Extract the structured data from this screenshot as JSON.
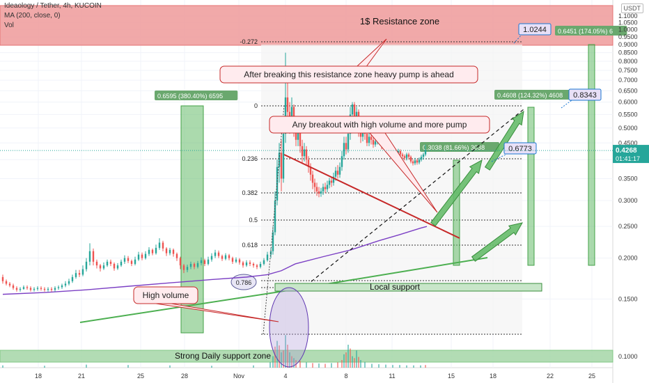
{
  "header": {
    "symbol": "Ideaology / Tether, 4h, KUCOIN",
    "ma_label": "MA (200, close, 0)",
    "vol_label": "Vol"
  },
  "price_axis": {
    "unit": "USDT",
    "ticks": [
      "1.1000",
      "1.0500",
      "1.0000",
      "0.9500",
      "0.9000",
      "0.8500",
      "0.8000",
      "0.7500",
      "0.7000",
      "0.6500",
      "0.6000",
      "0.5500",
      "0.5000",
      "0.4500",
      "0.4000",
      "0.3500",
      "0.3000",
      "0.2500",
      "0.2000",
      "0.1500",
      "0.1000"
    ],
    "current_price": "0.4268",
    "countdown": "01:41:17"
  },
  "time_axis": {
    "ticks": [
      "18",
      "21",
      "25",
      "28",
      "Nov",
      "4",
      "8",
      "11",
      "15",
      "18",
      "22",
      "25"
    ]
  },
  "fib_levels": [
    {
      "label": "-0.272"
    },
    {
      "label": "0"
    },
    {
      "label": "0.236"
    },
    {
      "label": "0.382"
    },
    {
      "label": "0.5"
    },
    {
      "label": "0.618"
    },
    {
      "label": "0.786"
    }
  ],
  "annotations": {
    "resistance_zone": "1$ Resistance zone",
    "breaking_note": "After breaking this resistance zone heavy pump is ahead",
    "breakout_note": "Any breakout with high volume and more pump",
    "high_volume": "High volume",
    "local_support": "Local support",
    "daily_support": "Strong Daily support zone"
  },
  "measurements": {
    "left_range": "0.6595 (380.40%) 6595",
    "target1": "0.3038 (81.66%) 3038",
    "target2": "0.4608 (124.32%) 4608",
    "target3": "0.6451 (174.05%) 6"
  },
  "price_tags": {
    "t1": "0.6773",
    "t2": "0.8343",
    "t3": "1.0244"
  },
  "colors": {
    "up": "#26a69a",
    "down": "#ef5350",
    "ma": "#7b3fc4",
    "trendline": "#4caf50",
    "resistance_line": "#c62828",
    "resistance_zone": "#ef9a9a",
    "support_zone": "#a5d6a7",
    "arrow": "#66bb6a"
  },
  "chart_data": {
    "type": "candlestick",
    "timeframe": "4h",
    "exchange": "KUCOIN",
    "pair": "Ideaology / Tether",
    "y_scale": "log",
    "ylim": [
      0.09,
      1.15
    ],
    "grid": true,
    "series": [
      {
        "name": "MA (200, close, 0)",
        "type": "line",
        "points": [
          [
            0,
            0.155
          ],
          [
            60,
            0.157
          ],
          [
            120,
            0.16
          ],
          [
            180,
            0.164
          ],
          [
            240,
            0.168
          ],
          [
            300,
            0.172
          ],
          [
            350,
            0.175
          ],
          [
            380,
            0.178
          ],
          [
            400,
            0.183
          ],
          [
            420,
            0.192
          ],
          [
            460,
            0.202
          ],
          [
            500,
            0.212
          ],
          [
            540,
            0.226
          ],
          [
            570,
            0.236
          ],
          [
            600,
            0.247
          ],
          [
            609,
            0.25
          ]
        ]
      }
    ],
    "candles": [
      [
        0,
        0.175,
        0.17,
        0.178,
        0.167
      ],
      [
        5,
        0.17,
        0.167,
        0.172,
        0.165
      ],
      [
        10,
        0.167,
        0.165,
        0.169,
        0.163
      ],
      [
        15,
        0.165,
        0.162,
        0.167,
        0.16
      ],
      [
        20,
        0.162,
        0.16,
        0.164,
        0.158
      ],
      [
        25,
        0.16,
        0.161,
        0.163,
        0.158
      ],
      [
        30,
        0.161,
        0.163,
        0.165,
        0.16
      ],
      [
        35,
        0.163,
        0.162,
        0.165,
        0.16
      ],
      [
        40,
        0.162,
        0.16,
        0.164,
        0.158
      ],
      [
        45,
        0.16,
        0.161,
        0.163,
        0.158
      ],
      [
        50,
        0.161,
        0.162,
        0.164,
        0.159
      ],
      [
        55,
        0.162,
        0.161,
        0.164,
        0.159
      ],
      [
        60,
        0.161,
        0.16,
        0.163,
        0.158
      ],
      [
        65,
        0.16,
        0.161,
        0.163,
        0.158
      ],
      [
        70,
        0.161,
        0.16,
        0.163,
        0.158
      ],
      [
        75,
        0.16,
        0.162,
        0.164,
        0.158
      ],
      [
        80,
        0.162,
        0.163,
        0.165,
        0.16
      ],
      [
        85,
        0.163,
        0.165,
        0.167,
        0.161
      ],
      [
        90,
        0.165,
        0.167,
        0.17,
        0.163
      ],
      [
        95,
        0.167,
        0.17,
        0.173,
        0.165
      ],
      [
        100,
        0.17,
        0.175,
        0.178,
        0.168
      ],
      [
        105,
        0.175,
        0.18,
        0.184,
        0.173
      ],
      [
        110,
        0.18,
        0.178,
        0.184,
        0.175
      ],
      [
        115,
        0.178,
        0.185,
        0.19,
        0.176
      ],
      [
        120,
        0.185,
        0.195,
        0.2,
        0.182
      ],
      [
        125,
        0.195,
        0.21,
        0.222,
        0.19
      ],
      [
        130,
        0.21,
        0.195,
        0.214,
        0.19
      ],
      [
        135,
        0.195,
        0.19,
        0.198,
        0.186
      ],
      [
        140,
        0.19,
        0.186,
        0.192,
        0.182
      ],
      [
        145,
        0.186,
        0.19,
        0.194,
        0.184
      ],
      [
        150,
        0.19,
        0.195,
        0.198,
        0.188
      ],
      [
        155,
        0.195,
        0.192,
        0.198,
        0.189
      ],
      [
        160,
        0.192,
        0.186,
        0.194,
        0.183
      ],
      [
        165,
        0.186,
        0.19,
        0.193,
        0.184
      ],
      [
        170,
        0.19,
        0.195,
        0.198,
        0.188
      ],
      [
        175,
        0.195,
        0.2,
        0.204,
        0.192
      ],
      [
        180,
        0.2,
        0.196,
        0.203,
        0.193
      ],
      [
        185,
        0.196,
        0.192,
        0.198,
        0.189
      ],
      [
        190,
        0.192,
        0.198,
        0.202,
        0.19
      ],
      [
        195,
        0.198,
        0.205,
        0.209,
        0.196
      ],
      [
        200,
        0.205,
        0.2,
        0.208,
        0.197
      ],
      [
        205,
        0.2,
        0.206,
        0.21,
        0.198
      ],
      [
        210,
        0.206,
        0.212,
        0.216,
        0.203
      ],
      [
        215,
        0.212,
        0.207,
        0.214,
        0.204
      ],
      [
        220,
        0.207,
        0.215,
        0.22,
        0.205
      ],
      [
        225,
        0.215,
        0.223,
        0.23,
        0.212
      ],
      [
        230,
        0.223,
        0.214,
        0.226,
        0.21
      ],
      [
        235,
        0.214,
        0.207,
        0.216,
        0.203
      ],
      [
        240,
        0.207,
        0.212,
        0.215,
        0.204
      ],
      [
        245,
        0.212,
        0.206,
        0.214,
        0.202
      ],
      [
        250,
        0.206,
        0.2,
        0.208,
        0.196
      ],
      [
        255,
        0.2,
        0.19,
        0.202,
        0.185
      ],
      [
        260,
        0.19,
        0.184,
        0.192,
        0.18
      ],
      [
        265,
        0.184,
        0.188,
        0.191,
        0.181
      ],
      [
        270,
        0.188,
        0.192,
        0.195,
        0.185
      ],
      [
        275,
        0.192,
        0.188,
        0.194,
        0.185
      ],
      [
        280,
        0.188,
        0.193,
        0.196,
        0.186
      ],
      [
        285,
        0.193,
        0.197,
        0.201,
        0.19
      ],
      [
        290,
        0.197,
        0.192,
        0.199,
        0.189
      ],
      [
        295,
        0.192,
        0.198,
        0.202,
        0.19
      ],
      [
        300,
        0.198,
        0.203,
        0.207,
        0.195
      ],
      [
        305,
        0.203,
        0.208,
        0.212,
        0.2
      ],
      [
        310,
        0.208,
        0.203,
        0.211,
        0.2
      ],
      [
        315,
        0.203,
        0.199,
        0.205,
        0.196
      ],
      [
        320,
        0.199,
        0.204,
        0.207,
        0.197
      ],
      [
        325,
        0.204,
        0.2,
        0.206,
        0.197
      ],
      [
        330,
        0.2,
        0.195,
        0.202,
        0.192
      ],
      [
        335,
        0.195,
        0.198,
        0.201,
        0.193
      ],
      [
        340,
        0.198,
        0.194,
        0.2,
        0.191
      ],
      [
        345,
        0.194,
        0.19,
        0.196,
        0.187
      ],
      [
        350,
        0.19,
        0.194,
        0.197,
        0.188
      ],
      [
        355,
        0.194,
        0.192,
        0.197,
        0.189
      ],
      [
        360,
        0.192,
        0.19,
        0.194,
        0.187
      ],
      [
        365,
        0.19,
        0.188,
        0.192,
        0.185
      ],
      [
        370,
        0.188,
        0.192,
        0.195,
        0.186
      ],
      [
        375,
        0.192,
        0.197,
        0.2,
        0.19
      ],
      [
        380,
        0.197,
        0.205,
        0.209,
        0.195
      ],
      [
        385,
        0.205,
        0.21,
        0.215,
        0.2
      ],
      [
        388,
        0.21,
        0.24,
        0.25,
        0.205
      ],
      [
        391,
        0.24,
        0.3,
        0.32,
        0.235
      ],
      [
        394,
        0.3,
        0.38,
        0.4,
        0.29
      ],
      [
        397,
        0.38,
        0.42,
        0.45,
        0.34
      ],
      [
        400,
        0.42,
        0.35,
        0.46,
        0.32
      ],
      [
        403,
        0.35,
        0.48,
        0.52,
        0.34
      ],
      [
        406,
        0.48,
        0.62,
        0.85,
        0.45
      ],
      [
        409,
        0.62,
        0.56,
        0.72,
        0.52
      ],
      [
        412,
        0.56,
        0.52,
        0.6,
        0.48
      ],
      [
        415,
        0.52,
        0.58,
        0.62,
        0.5
      ],
      [
        418,
        0.58,
        0.5,
        0.59,
        0.47
      ],
      [
        421,
        0.5,
        0.46,
        0.52,
        0.44
      ],
      [
        424,
        0.46,
        0.5,
        0.53,
        0.44
      ],
      [
        427,
        0.5,
        0.44,
        0.51,
        0.42
      ],
      [
        430,
        0.44,
        0.41,
        0.46,
        0.39
      ],
      [
        433,
        0.41,
        0.43,
        0.45,
        0.395
      ],
      [
        436,
        0.43,
        0.4,
        0.44,
        0.385
      ],
      [
        439,
        0.4,
        0.38,
        0.41,
        0.365
      ],
      [
        442,
        0.38,
        0.36,
        0.39,
        0.345
      ],
      [
        445,
        0.36,
        0.34,
        0.37,
        0.325
      ],
      [
        448,
        0.34,
        0.33,
        0.35,
        0.318
      ],
      [
        451,
        0.33,
        0.32,
        0.34,
        0.31
      ],
      [
        454,
        0.32,
        0.315,
        0.33,
        0.307
      ],
      [
        457,
        0.315,
        0.32,
        0.328,
        0.308
      ],
      [
        460,
        0.32,
        0.33,
        0.338,
        0.312
      ],
      [
        463,
        0.33,
        0.325,
        0.34,
        0.316
      ],
      [
        466,
        0.325,
        0.335,
        0.345,
        0.318
      ],
      [
        469,
        0.335,
        0.345,
        0.352,
        0.327
      ],
      [
        472,
        0.345,
        0.34,
        0.355,
        0.33
      ],
      [
        475,
        0.34,
        0.355,
        0.365,
        0.333
      ],
      [
        478,
        0.355,
        0.37,
        0.38,
        0.345
      ],
      [
        481,
        0.37,
        0.36,
        0.385,
        0.35
      ],
      [
        484,
        0.36,
        0.38,
        0.392,
        0.352
      ],
      [
        487,
        0.38,
        0.41,
        0.425,
        0.37
      ],
      [
        490,
        0.41,
        0.45,
        0.47,
        0.4
      ],
      [
        493,
        0.45,
        0.43,
        0.47,
        0.415
      ],
      [
        496,
        0.43,
        0.48,
        0.51,
        0.42
      ],
      [
        499,
        0.48,
        0.55,
        0.58,
        0.46
      ],
      [
        502,
        0.55,
        0.59,
        0.6,
        0.5
      ],
      [
        505,
        0.59,
        0.54,
        0.6,
        0.51
      ],
      [
        508,
        0.54,
        0.56,
        0.58,
        0.5
      ],
      [
        511,
        0.56,
        0.5,
        0.57,
        0.47
      ],
      [
        514,
        0.5,
        0.47,
        0.51,
        0.45
      ],
      [
        517,
        0.47,
        0.52,
        0.54,
        0.455
      ],
      [
        520,
        0.52,
        0.48,
        0.525,
        0.46
      ],
      [
        523,
        0.48,
        0.45,
        0.49,
        0.44
      ],
      [
        526,
        0.45,
        0.47,
        0.485,
        0.44
      ],
      [
        529,
        0.47,
        0.46,
        0.48,
        0.445
      ],
      [
        532,
        0.46,
        0.445,
        0.47,
        0.435
      ],
      [
        535,
        0.445,
        0.455,
        0.465,
        0.438
      ],
      [
        538,
        0.455,
        0.47,
        0.48,
        0.445
      ],
      [
        541,
        0.47,
        0.455,
        0.478,
        0.446
      ],
      [
        544,
        0.455,
        0.44,
        0.46,
        0.43
      ],
      [
        547,
        0.44,
        0.45,
        0.458,
        0.432
      ],
      [
        550,
        0.45,
        0.435,
        0.455,
        0.425
      ],
      [
        553,
        0.435,
        0.425,
        0.44,
        0.418
      ],
      [
        556,
        0.425,
        0.43,
        0.438,
        0.418
      ],
      [
        559,
        0.43,
        0.42,
        0.435,
        0.412
      ],
      [
        562,
        0.42,
        0.415,
        0.425,
        0.408
      ],
      [
        565,
        0.415,
        0.42,
        0.428,
        0.408
      ],
      [
        568,
        0.42,
        0.425,
        0.432,
        0.414
      ],
      [
        571,
        0.425,
        0.415,
        0.43,
        0.408
      ],
      [
        574,
        0.415,
        0.41,
        0.42,
        0.402
      ],
      [
        577,
        0.41,
        0.405,
        0.415,
        0.398
      ],
      [
        580,
        0.405,
        0.415,
        0.42,
        0.398
      ],
      [
        583,
        0.415,
        0.408,
        0.42,
        0.4
      ],
      [
        586,
        0.408,
        0.395,
        0.412,
        0.39
      ],
      [
        589,
        0.395,
        0.39,
        0.4,
        0.384
      ],
      [
        592,
        0.39,
        0.398,
        0.405,
        0.385
      ],
      [
        595,
        0.398,
        0.392,
        0.402,
        0.386
      ],
      [
        598,
        0.392,
        0.4,
        0.406,
        0.387
      ],
      [
        601,
        0.4,
        0.408,
        0.414,
        0.395
      ],
      [
        604,
        0.408,
        0.415,
        0.42,
        0.4
      ],
      [
        607,
        0.415,
        0.427,
        0.445,
        0.41
      ]
    ],
    "volume": [
      [
        0,
        6
      ],
      [
        60,
        5
      ],
      [
        120,
        8
      ],
      [
        180,
        7
      ],
      [
        240,
        6
      ],
      [
        300,
        5
      ],
      [
        360,
        6
      ],
      [
        384,
        14
      ],
      [
        388,
        30
      ],
      [
        391,
        55
      ],
      [
        394,
        70
      ],
      [
        397,
        58
      ],
      [
        400,
        40
      ],
      [
        403,
        45
      ],
      [
        406,
        85
      ],
      [
        409,
        60
      ],
      [
        412,
        40
      ],
      [
        415,
        30
      ],
      [
        418,
        25
      ],
      [
        421,
        20
      ],
      [
        427,
        18
      ],
      [
        436,
        14
      ],
      [
        445,
        12
      ],
      [
        454,
        11
      ],
      [
        463,
        10
      ],
      [
        472,
        12
      ],
      [
        481,
        14
      ],
      [
        487,
        20
      ],
      [
        490,
        35
      ],
      [
        493,
        40
      ],
      [
        496,
        60
      ],
      [
        499,
        50
      ],
      [
        502,
        30
      ],
      [
        505,
        25
      ],
      [
        508,
        45
      ],
      [
        511,
        28
      ],
      [
        514,
        20
      ],
      [
        520,
        15
      ],
      [
        530,
        10
      ],
      [
        540,
        9
      ],
      [
        550,
        8
      ],
      [
        560,
        7
      ],
      [
        570,
        7
      ],
      [
        580,
        6
      ],
      [
        590,
        6
      ],
      [
        600,
        6
      ],
      [
        607,
        7
      ]
    ]
  }
}
